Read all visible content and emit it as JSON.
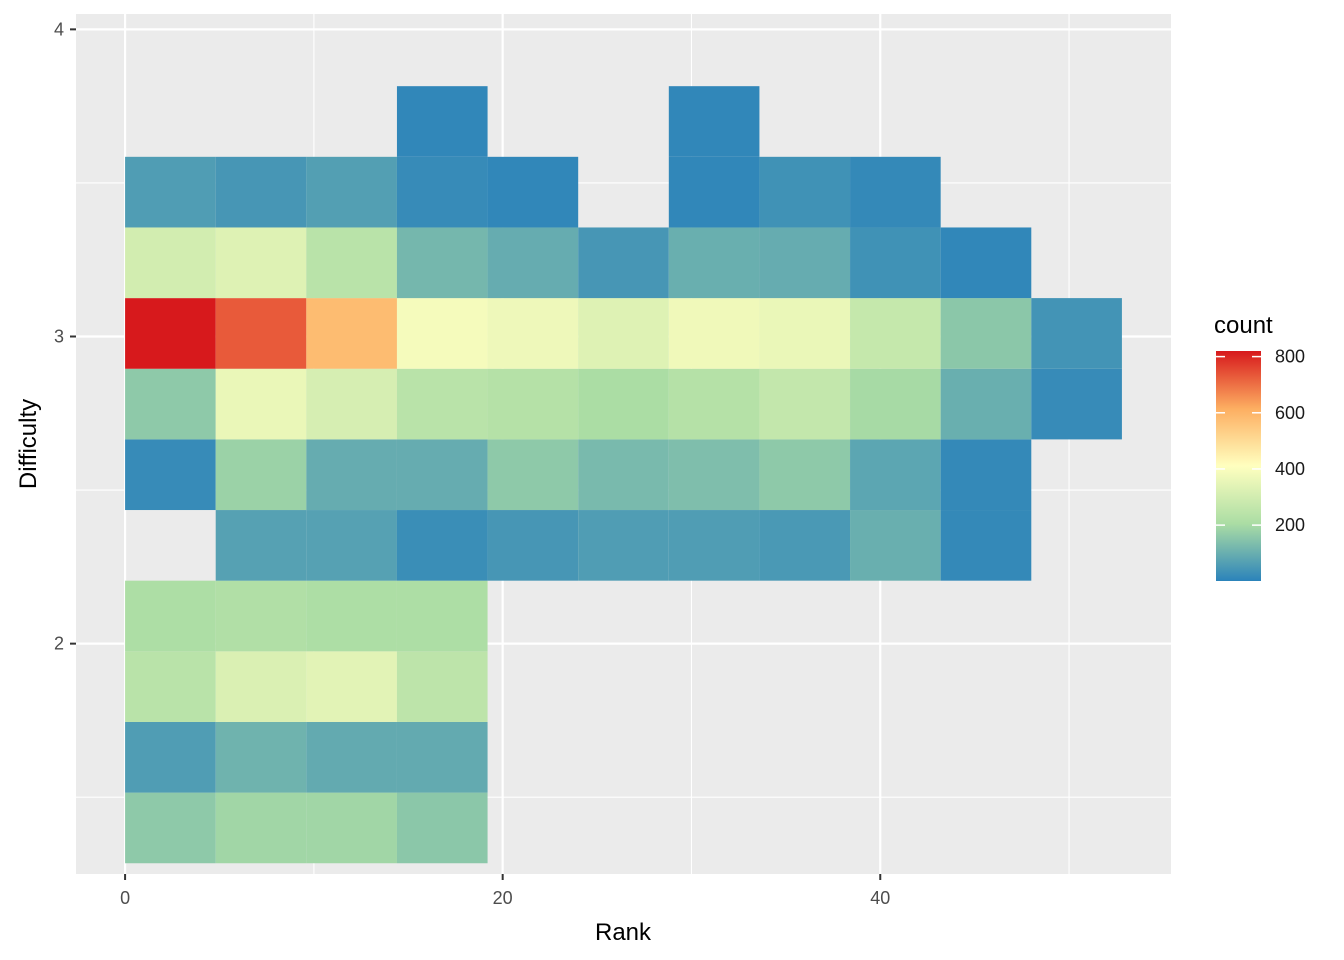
{
  "chart_data": {
    "type": "heatmap",
    "title": "",
    "xlabel": "Rank",
    "ylabel": "Difficulty",
    "xlim": [
      -2.6,
      55.4
    ],
    "ylim": [
      1.25,
      4.05
    ],
    "x_ticks": [
      0,
      20,
      40
    ],
    "x_tick_labels": [
      "0",
      "20",
      "40"
    ],
    "y_ticks": [
      2,
      3,
      4
    ],
    "y_tick_labels": [
      "2",
      "3",
      "4"
    ],
    "grid": true,
    "legend": {
      "title": "count",
      "placement": "right",
      "range": [
        1,
        820
      ],
      "ticks": [
        200,
        400,
        600,
        800
      ],
      "tick_labels": [
        "200",
        "400",
        "600",
        "800"
      ]
    },
    "colorscale": [
      "#2b83ba",
      "#abdda4",
      "#ffffbf",
      "#fdae61",
      "#d7191c"
    ],
    "bin_width_x": 4.8,
    "bin_height_y": 0.23,
    "x_bin_centers": [
      2.4,
      7.2,
      12.0,
      16.8,
      21.6,
      26.4,
      31.2,
      36.0,
      40.8,
      45.6,
      50.4
    ],
    "y_bin_centers": [
      1.4,
      1.63,
      1.86,
      2.09,
      2.32,
      2.55,
      2.78,
      3.01,
      3.24,
      3.47,
      3.7,
      3.93
    ],
    "cells": [
      {
        "x": 2.4,
        "y": 1.4,
        "count": 160
      },
      {
        "x": 7.2,
        "y": 1.4,
        "count": 190
      },
      {
        "x": 12.0,
        "y": 1.4,
        "count": 190
      },
      {
        "x": 16.8,
        "y": 1.4,
        "count": 155
      },
      {
        "x": 2.4,
        "y": 1.63,
        "count": 60
      },
      {
        "x": 7.2,
        "y": 1.63,
        "count": 110
      },
      {
        "x": 12.0,
        "y": 1.63,
        "count": 90
      },
      {
        "x": 16.8,
        "y": 1.63,
        "count": 90
      },
      {
        "x": 2.4,
        "y": 1.86,
        "count": 240
      },
      {
        "x": 7.2,
        "y": 1.86,
        "count": 320
      },
      {
        "x": 12.0,
        "y": 1.86,
        "count": 340
      },
      {
        "x": 16.8,
        "y": 1.86,
        "count": 250
      },
      {
        "x": 2.4,
        "y": 2.09,
        "count": 210
      },
      {
        "x": 7.2,
        "y": 2.09,
        "count": 220
      },
      {
        "x": 12.0,
        "y": 2.09,
        "count": 210
      },
      {
        "x": 16.8,
        "y": 2.09,
        "count": 210
      },
      {
        "x": 7.2,
        "y": 2.32,
        "count": 70
      },
      {
        "x": 12.0,
        "y": 2.32,
        "count": 70
      },
      {
        "x": 16.8,
        "y": 2.32,
        "count": 25
      },
      {
        "x": 21.6,
        "y": 2.32,
        "count": 45
      },
      {
        "x": 26.4,
        "y": 2.32,
        "count": 60
      },
      {
        "x": 31.2,
        "y": 2.32,
        "count": 60
      },
      {
        "x": 36.0,
        "y": 2.32,
        "count": 50
      },
      {
        "x": 40.8,
        "y": 2.32,
        "count": 100
      },
      {
        "x": 45.6,
        "y": 2.32,
        "count": 15
      },
      {
        "x": 2.4,
        "y": 2.55,
        "count": 20
      },
      {
        "x": 7.2,
        "y": 2.55,
        "count": 180
      },
      {
        "x": 12.0,
        "y": 2.55,
        "count": 95
      },
      {
        "x": 16.8,
        "y": 2.55,
        "count": 95
      },
      {
        "x": 21.6,
        "y": 2.55,
        "count": 160
      },
      {
        "x": 26.4,
        "y": 2.55,
        "count": 125
      },
      {
        "x": 31.2,
        "y": 2.55,
        "count": 135
      },
      {
        "x": 36.0,
        "y": 2.55,
        "count": 160
      },
      {
        "x": 40.8,
        "y": 2.55,
        "count": 80
      },
      {
        "x": 45.6,
        "y": 2.55,
        "count": 15
      },
      {
        "x": 2.4,
        "y": 2.78,
        "count": 160
      },
      {
        "x": 7.2,
        "y": 2.78,
        "count": 360
      },
      {
        "x": 12.0,
        "y": 2.78,
        "count": 310
      },
      {
        "x": 16.8,
        "y": 2.78,
        "count": 240
      },
      {
        "x": 21.6,
        "y": 2.78,
        "count": 230
      },
      {
        "x": 26.4,
        "y": 2.78,
        "count": 205
      },
      {
        "x": 31.2,
        "y": 2.78,
        "count": 230
      },
      {
        "x": 36.0,
        "y": 2.78,
        "count": 265
      },
      {
        "x": 40.8,
        "y": 2.78,
        "count": 200
      },
      {
        "x": 45.6,
        "y": 2.78,
        "count": 100
      },
      {
        "x": 50.4,
        "y": 2.78,
        "count": 20
      },
      {
        "x": 2.4,
        "y": 3.01,
        "count": 820
      },
      {
        "x": 7.2,
        "y": 3.01,
        "count": 730
      },
      {
        "x": 12.0,
        "y": 3.01,
        "count": 580
      },
      {
        "x": 16.8,
        "y": 3.01,
        "count": 385
      },
      {
        "x": 21.6,
        "y": 3.01,
        "count": 370
      },
      {
        "x": 26.4,
        "y": 3.01,
        "count": 330
      },
      {
        "x": 31.2,
        "y": 3.01,
        "count": 375
      },
      {
        "x": 36.0,
        "y": 3.01,
        "count": 360
      },
      {
        "x": 40.8,
        "y": 3.01,
        "count": 270
      },
      {
        "x": 45.6,
        "y": 3.01,
        "count": 155
      },
      {
        "x": 50.4,
        "y": 3.01,
        "count": 40
      },
      {
        "x": 2.4,
        "y": 3.24,
        "count": 300
      },
      {
        "x": 7.2,
        "y": 3.24,
        "count": 330
      },
      {
        "x": 12.0,
        "y": 3.24,
        "count": 240
      },
      {
        "x": 16.8,
        "y": 3.24,
        "count": 120
      },
      {
        "x": 21.6,
        "y": 3.24,
        "count": 95
      },
      {
        "x": 26.4,
        "y": 3.24,
        "count": 45
      },
      {
        "x": 31.2,
        "y": 3.24,
        "count": 100
      },
      {
        "x": 36.0,
        "y": 3.24,
        "count": 95
      },
      {
        "x": 40.8,
        "y": 3.24,
        "count": 35
      },
      {
        "x": 45.6,
        "y": 3.24,
        "count": 10
      },
      {
        "x": 2.4,
        "y": 3.47,
        "count": 60
      },
      {
        "x": 7.2,
        "y": 3.47,
        "count": 45
      },
      {
        "x": 12.0,
        "y": 3.47,
        "count": 65
      },
      {
        "x": 16.8,
        "y": 3.47,
        "count": 20
      },
      {
        "x": 21.6,
        "y": 3.47,
        "count": 10
      },
      {
        "x": 31.2,
        "y": 3.47,
        "count": 10
      },
      {
        "x": 36.0,
        "y": 3.47,
        "count": 35
      },
      {
        "x": 40.8,
        "y": 3.47,
        "count": 15
      },
      {
        "x": 16.8,
        "y": 3.7,
        "count": 10
      },
      {
        "x": 31.2,
        "y": 3.7,
        "count": 10
      }
    ]
  }
}
